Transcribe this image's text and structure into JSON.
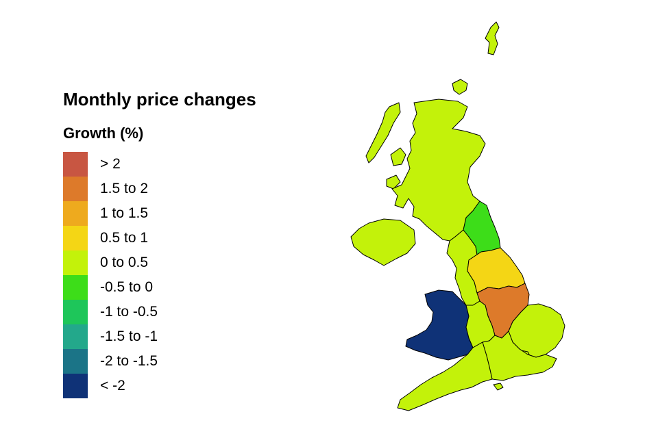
{
  "title": "Monthly price changes",
  "legend": {
    "title": "Growth (%)",
    "items": [
      {
        "label": "> 2",
        "color": "#c85642"
      },
      {
        "label": "1.5 to 2",
        "color": "#dd7a2a"
      },
      {
        "label": "1 to 1.5",
        "color": "#eeaa1e"
      },
      {
        "label": "0.5 to 1",
        "color": "#f4d615"
      },
      {
        "label": "0 to 0.5",
        "color": "#c3f20a"
      },
      {
        "label": "-0.5 to 0",
        "color": "#3ddd19"
      },
      {
        "label": "-1 to -0.5",
        "color": "#1ec65a"
      },
      {
        "label": "-1.5 to -1",
        "color": "#23a88b"
      },
      {
        "label": "-2 to -1.5",
        "color": "#1b7487"
      },
      {
        "label": "< -2",
        "color": "#0f3277"
      }
    ]
  }
}
